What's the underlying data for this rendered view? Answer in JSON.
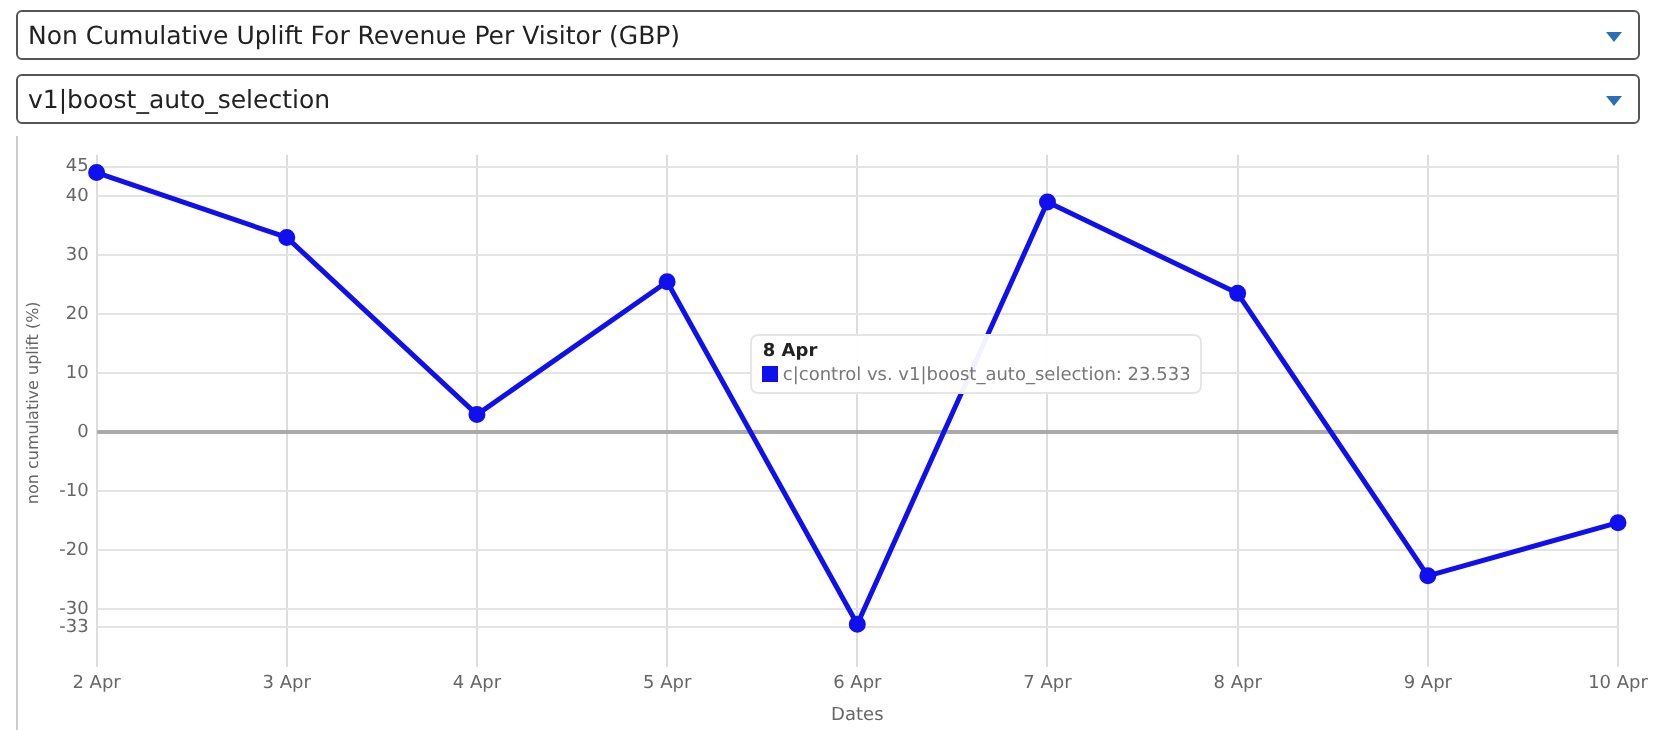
{
  "chart_data": {
    "type": "line",
    "title": "Non Cumulative Uplift For Revenue Per Visitor (GBP)",
    "subtitle": "v1|boost_auto_selection",
    "xlabel": "Dates",
    "ylabel": "non cumulative uplift (%)",
    "categories": [
      "2 Apr",
      "3 Apr",
      "4 Apr",
      "5 Apr",
      "6 Apr",
      "7 Apr",
      "8 Apr",
      "9 Apr",
      "10 Apr"
    ],
    "series": [
      {
        "color": "#1010ee",
        "values": [
          44,
          33,
          3,
          25.5,
          -32.5,
          39,
          23.533,
          -24.3,
          -15.3
        ]
      }
    ],
    "annotations": [
      "8 Apr",
      "c|control vs. v1|boost_auto_selection: 23.533"
    ],
    "ylim": [
      -37,
      47
    ],
    "yticks": [
      -33,
      -30,
      -20,
      -10,
      0,
      10,
      20,
      30,
      40,
      45
    ],
    "grid": true,
    "legend": false,
    "marker": "circle",
    "line_style": "solid"
  }
}
